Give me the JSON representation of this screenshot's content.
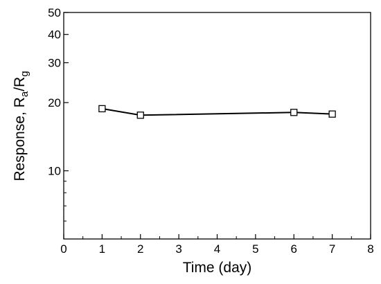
{
  "chart_data": {
    "type": "line",
    "xlabel": "Time (day)",
    "ylabel": {
      "prefix": "Response, R",
      "sub1": "a",
      "mid": "/R",
      "sub2": "g"
    },
    "x_scale": "linear",
    "y_scale": "log",
    "xlim": [
      0,
      8
    ],
    "ylim": [
      5,
      50
    ],
    "x_ticks": [
      0,
      1,
      2,
      3,
      4,
      5,
      6,
      7,
      8
    ],
    "y_ticks": [
      10,
      20,
      30,
      40,
      50
    ],
    "grid": false,
    "legend": "none",
    "series": [
      {
        "x": [
          1,
          2,
          6,
          7
        ],
        "y": [
          18.8,
          17.6,
          18.1,
          17.8
        ],
        "marker": "open-square",
        "color": "#000000"
      }
    ]
  }
}
